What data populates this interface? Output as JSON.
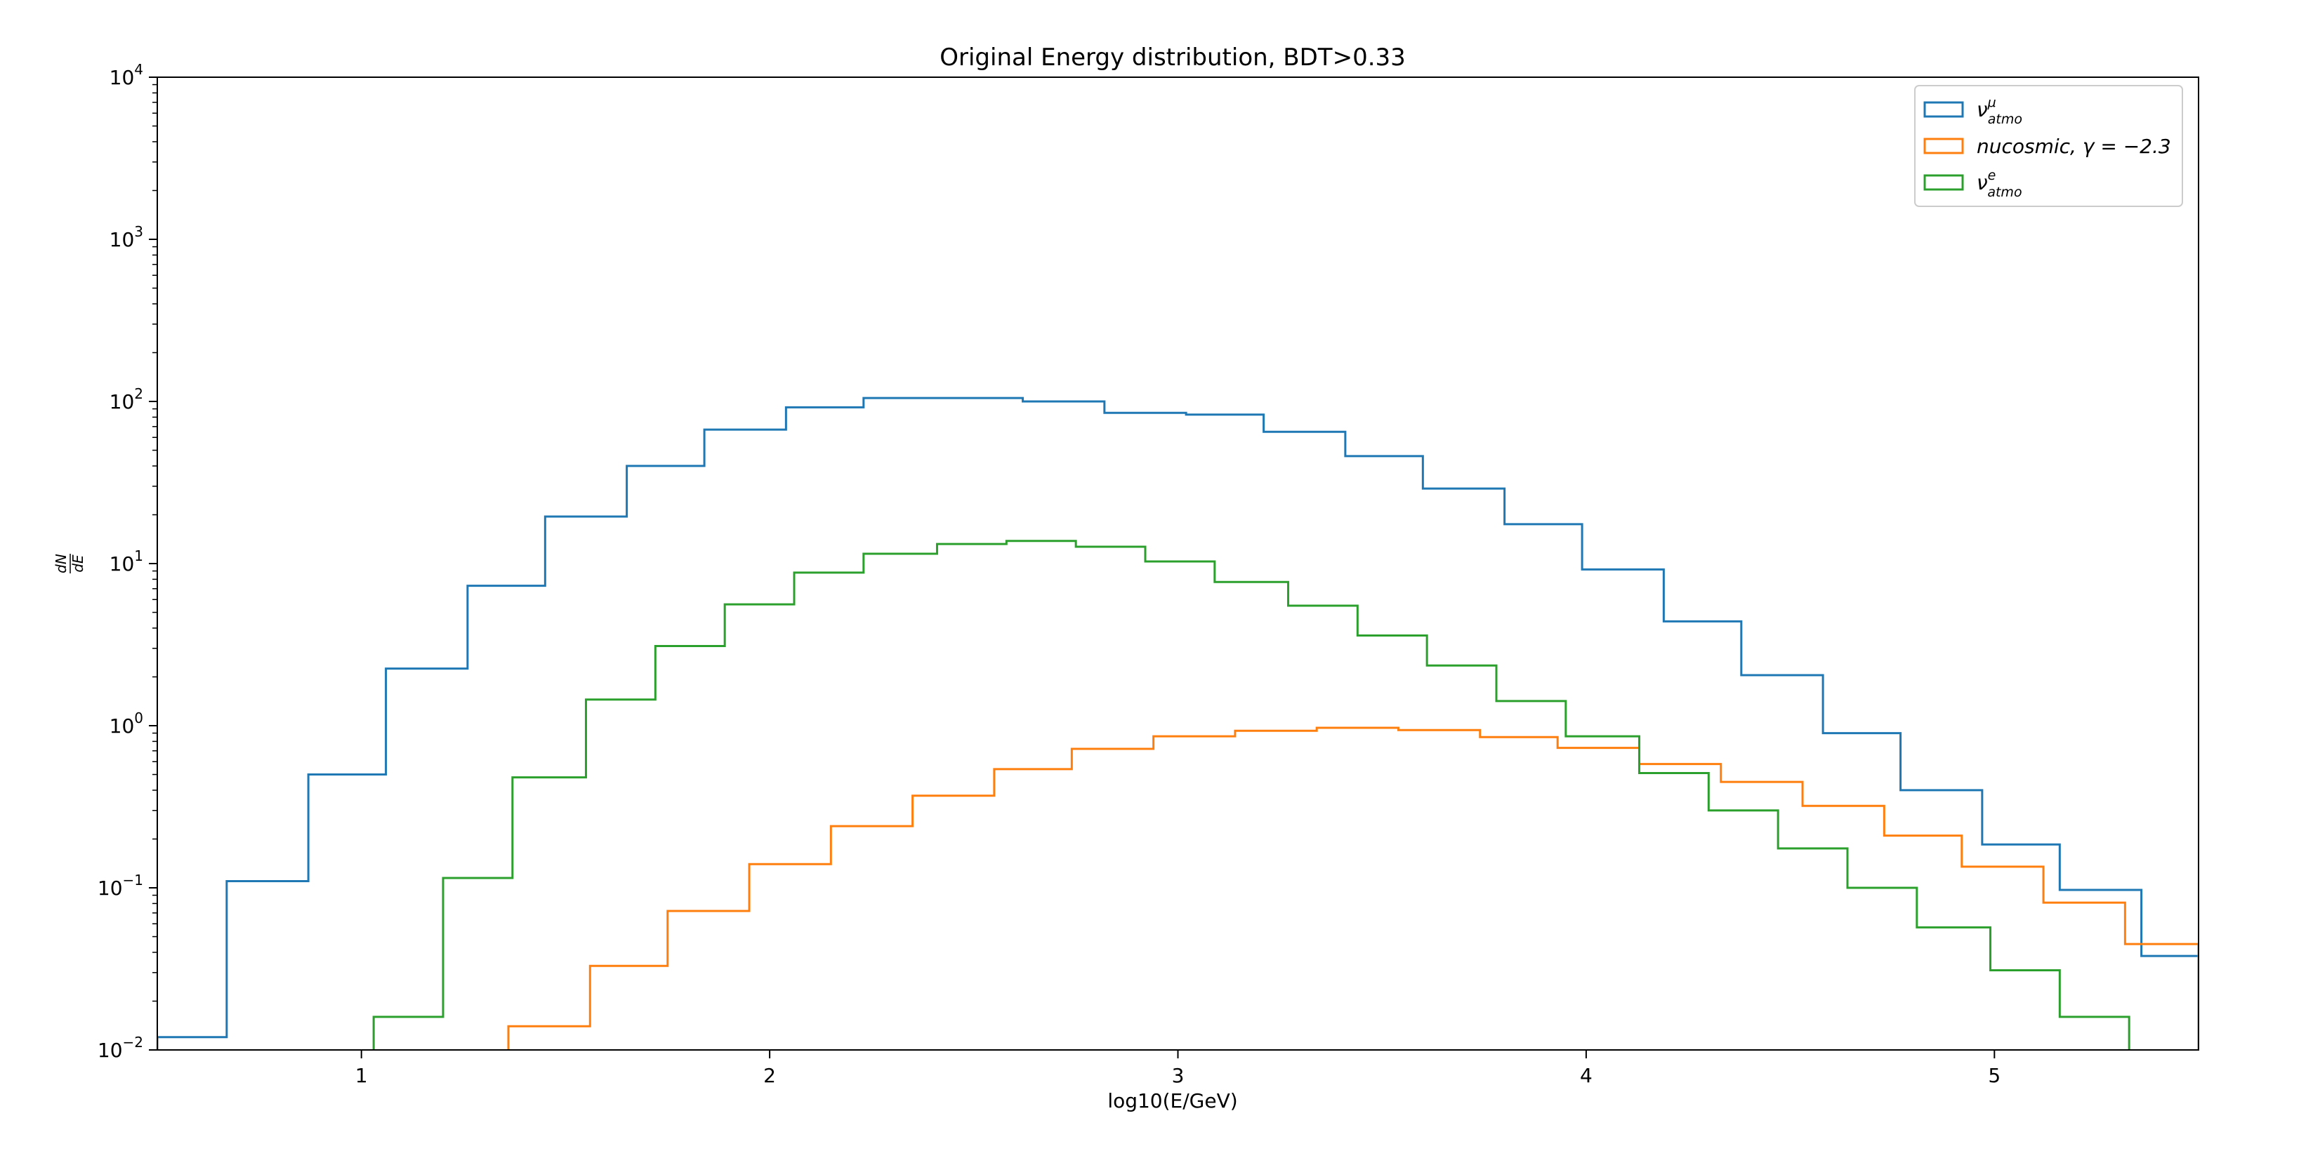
{
  "chart_data": {
    "type": "step-histogram",
    "title": "Original Energy distribution, BDT>0.33",
    "xlabel": "log10(E/GeV)",
    "ylabel": "dN/dE",
    "xlim": [
      0.5,
      5.5
    ],
    "ylim": [
      0.01,
      10000
    ],
    "yscale": "log",
    "xticks": [
      1,
      2,
      3,
      4,
      5
    ],
    "yticks": [
      {
        "value": 0.01,
        "base": "10",
        "exp": "−2"
      },
      {
        "value": 0.1,
        "base": "10",
        "exp": "−1"
      },
      {
        "value": 1,
        "base": "10",
        "exp": "0"
      },
      {
        "value": 10,
        "base": "10",
        "exp": "1"
      },
      {
        "value": 100,
        "base": "10",
        "exp": "2"
      },
      {
        "value": 1000,
        "base": "10",
        "exp": "3"
      },
      {
        "value": 10000,
        "base": "10",
        "exp": "4"
      }
    ],
    "legend": {
      "position": "upper-right"
    },
    "series": [
      {
        "name": "ν_atmo^μ",
        "legend_main": "ν",
        "legend_sup": "μ",
        "legend_sub": "atmo",
        "color": "#1f77b4",
        "edges": [
          0.5,
          0.67,
          0.87,
          1.06,
          1.26,
          1.45,
          1.65,
          1.84,
          2.04,
          2.23,
          2.43,
          2.62,
          2.82,
          3.02,
          3.21,
          3.41,
          3.6,
          3.8,
          3.99,
          4.19,
          4.38,
          4.58,
          4.77,
          4.97,
          5.16,
          5.36,
          5.5
        ],
        "values": [
          0.012,
          0.11,
          0.5,
          2.25,
          7.3,
          19.5,
          40,
          67,
          92,
          105,
          105,
          100,
          85,
          83,
          65,
          46,
          29,
          17.5,
          9.2,
          4.4,
          2.05,
          0.9,
          0.4,
          0.185,
          0.097,
          0.038,
          0.023
        ]
      },
      {
        "name": "nucosmic, γ = −2.3",
        "legend_main": "nucosmic, γ = −2.3",
        "legend_sup": "",
        "legend_sub": "",
        "color": "#ff7f0e",
        "edges": [
          1.36,
          1.56,
          1.75,
          1.95,
          2.15,
          2.35,
          2.55,
          2.74,
          2.94,
          3.14,
          3.34,
          3.54,
          3.74,
          3.93,
          4.13,
          4.33,
          4.53,
          4.73,
          4.92,
          5.12,
          5.32,
          5.5
        ],
        "values": [
          0.014,
          0.033,
          0.072,
          0.14,
          0.24,
          0.37,
          0.54,
          0.72,
          0.86,
          0.93,
          0.97,
          0.94,
          0.85,
          0.73,
          0.58,
          0.45,
          0.32,
          0.21,
          0.135,
          0.081,
          0.045,
          0.045
        ]
      },
      {
        "name": "ν_atmo^e",
        "legend_main": "ν",
        "legend_sup": "e",
        "legend_sub": "atmo",
        "color": "#2ca02c",
        "edges": [
          1.03,
          1.2,
          1.37,
          1.55,
          1.72,
          1.89,
          2.06,
          2.23,
          2.41,
          2.58,
          2.75,
          2.92,
          3.09,
          3.27,
          3.44,
          3.61,
          3.78,
          3.95,
          4.13,
          4.3,
          4.47,
          4.64,
          4.81,
          4.99,
          5.16,
          5.33
        ],
        "values": [
          0.016,
          0.115,
          0.48,
          1.45,
          3.1,
          5.6,
          8.8,
          11.5,
          13.2,
          13.8,
          12.7,
          10.3,
          7.7,
          5.5,
          3.6,
          2.35,
          1.42,
          0.86,
          0.51,
          0.3,
          0.175,
          0.1,
          0.057,
          0.031,
          0.016
        ]
      }
    ]
  }
}
